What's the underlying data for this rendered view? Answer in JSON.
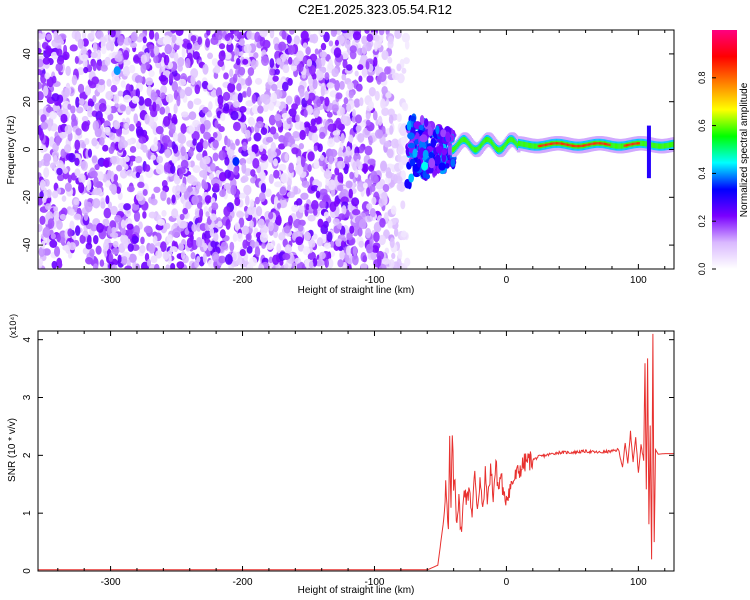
{
  "chart_data": [
    {
      "type": "heatmap",
      "title": "C2E1.2025.323.05.54.R12",
      "xlabel": "Height of straight line (km)",
      "ylabel": "Frequency (Hz)",
      "xlim": [
        -355,
        127
      ],
      "ylim": [
        -50,
        50
      ],
      "xticks": [
        -300,
        -200,
        -100,
        0,
        100
      ],
      "yticks": [
        -40,
        -20,
        0,
        20,
        40
      ],
      "colorbar": {
        "label": "Normalized spectral amplitude",
        "range": [
          0,
          1
        ],
        "ticks": [
          "0.0",
          "0.2",
          "0.4",
          "0.6",
          "0.8"
        ],
        "colors": [
          "#ffffff",
          "#d9b8ff",
          "#7a00ff",
          "#0000ff",
          "#00ffff",
          "#00ff00",
          "#ffff00",
          "#ff8000",
          "#ff0000",
          "#ff0080"
        ]
      },
      "regions": [
        {
          "name": "scattered noise",
          "x_range": [
            -355,
            -75
          ],
          "y_range": [
            -50,
            50
          ],
          "amplitude": 0.1
        },
        {
          "name": "transition",
          "x_range": [
            -75,
            -40
          ],
          "y_range": [
            -15,
            15
          ],
          "amplitude": 0.35
        },
        {
          "name": "signal line",
          "x_range": [
            -40,
            127
          ],
          "y_center": 2,
          "amplitude": 0.85
        }
      ],
      "highlights": [
        {
          "x": -295,
          "y": 33,
          "amplitude": 0.4
        },
        {
          "x": -205,
          "y": -5,
          "amplitude": 0.35
        },
        {
          "x": -62,
          "y": -7,
          "amplitude": 0.45
        }
      ]
    },
    {
      "type": "line",
      "xlabel": "Height of straight line (km)",
      "ylabel": "SNR (10 * v/v)",
      "y_multiplier": "(x10⁴)",
      "xlim": [
        -355,
        127
      ],
      "ylim": [
        0,
        4.15
      ],
      "xticks": [
        -300,
        -200,
        -100,
        0,
        100
      ],
      "yticks": [
        0,
        1,
        2,
        3,
        4
      ],
      "color": "#e8312f",
      "series": [
        {
          "x": [
            -355,
            -300,
            -200,
            -100,
            -60,
            -52,
            -48,
            -46,
            -44,
            -43,
            -42,
            -41,
            -40,
            -39,
            -38,
            -36,
            -34,
            -32,
            -30,
            -28,
            -26,
            -24,
            -22,
            -20,
            -18,
            -16,
            -14,
            -12,
            -10,
            -8,
            -6,
            -4,
            -2,
            0,
            5,
            10,
            15,
            20,
            25,
            30,
            35,
            40,
            50,
            60,
            70,
            80,
            85,
            88,
            90,
            92,
            94,
            96,
            98,
            100,
            102,
            104,
            105,
            106,
            107,
            108,
            109,
            110,
            111,
            112,
            113,
            115,
            120,
            127
          ],
          "y": [
            0.02,
            0.02,
            0.02,
            0.02,
            0.02,
            0.1,
            0.8,
            1.5,
            0.6,
            2.25,
            1.0,
            2.45,
            1.4,
            1.7,
            0.9,
            1.2,
            0.6,
            1.5,
            1.2,
            1.5,
            0.9,
            1.75,
            1.1,
            1.6,
            1.0,
            1.65,
            1.2,
            1.8,
            1.3,
            1.85,
            1.4,
            1.7,
            1.2,
            1.3,
            1.55,
            1.75,
            1.9,
            1.92,
            1.98,
            2.0,
            2.03,
            2.05,
            2.05,
            2.07,
            2.05,
            2.07,
            2.1,
            1.8,
            2.2,
            1.85,
            2.4,
            1.9,
            2.3,
            1.7,
            2.2,
            1.9,
            3.6,
            1.4,
            3.7,
            0.8,
            2.5,
            0.2,
            4.1,
            0.5,
            2.1,
            2.02,
            2.03,
            2.03
          ]
        }
      ]
    }
  ]
}
